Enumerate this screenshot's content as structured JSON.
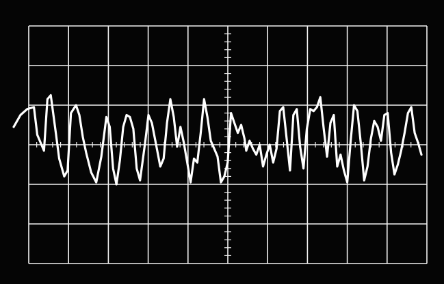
{
  "screen": {
    "background_color": "#050505",
    "grid_color": "#f2f2f2",
    "trace_color": "#ffffff",
    "grid_divisions": {
      "horizontal": 10,
      "vertical": 6
    },
    "minor_ticks_per_division": 5
  },
  "trace": {
    "description_visible": false,
    "points": [
      [
        0.0,
        0.45
      ],
      [
        0.2,
        0.75
      ],
      [
        0.4,
        0.9
      ],
      [
        0.6,
        0.95
      ],
      [
        0.7,
        0.25
      ],
      [
        0.9,
        -0.15
      ],
      [
        1.0,
        1.15
      ],
      [
        1.1,
        1.25
      ],
      [
        1.25,
        0.3
      ],
      [
        1.35,
        -0.35
      ],
      [
        1.5,
        -0.8
      ],
      [
        1.6,
        -0.65
      ],
      [
        1.7,
        0.8
      ],
      [
        1.85,
        1.0
      ],
      [
        1.95,
        0.75
      ],
      [
        2.05,
        0.2
      ],
      [
        2.15,
        -0.2
      ],
      [
        2.3,
        -0.7
      ],
      [
        2.45,
        -0.95
      ],
      [
        2.6,
        -0.3
      ],
      [
        2.75,
        0.7
      ],
      [
        2.85,
        0.45
      ],
      [
        2.95,
        -0.6
      ],
      [
        3.05,
        -1.0
      ],
      [
        3.15,
        -0.4
      ],
      [
        3.25,
        0.45
      ],
      [
        3.35,
        0.75
      ],
      [
        3.45,
        0.7
      ],
      [
        3.55,
        0.4
      ],
      [
        3.65,
        -0.6
      ],
      [
        3.75,
        -0.9
      ],
      [
        3.9,
        0.05
      ],
      [
        4.0,
        0.75
      ],
      [
        4.1,
        0.55
      ],
      [
        4.25,
        -0.1
      ],
      [
        4.35,
        -0.55
      ],
      [
        4.45,
        -0.35
      ],
      [
        4.55,
        0.55
      ],
      [
        4.65,
        1.15
      ],
      [
        4.75,
        0.7
      ],
      [
        4.85,
        -0.05
      ],
      [
        4.95,
        0.45
      ],
      [
        5.05,
        0.05
      ],
      [
        5.15,
        -0.45
      ],
      [
        5.25,
        -0.95
      ],
      [
        5.35,
        -0.35
      ],
      [
        5.45,
        -0.45
      ],
      [
        5.55,
        0.3
      ],
      [
        5.65,
        1.15
      ],
      [
        5.75,
        0.7
      ],
      [
        5.85,
        0.1
      ],
      [
        5.95,
        -0.1
      ],
      [
        6.05,
        -0.3
      ],
      [
        6.15,
        -0.95
      ],
      [
        6.25,
        -0.8
      ],
      [
        6.35,
        -0.45
      ],
      [
        6.45,
        0.8
      ],
      [
        6.55,
        0.55
      ],
      [
        6.65,
        0.3
      ],
      [
        6.75,
        0.5
      ],
      [
        6.85,
        0.15
      ],
      [
        6.9,
        -0.15
      ],
      [
        7.0,
        0.1
      ],
      [
        7.1,
        -0.1
      ],
      [
        7.2,
        -0.25
      ],
      [
        7.3,
        0.0
      ],
      [
        7.4,
        -0.55
      ],
      [
        7.5,
        -0.25
      ],
      [
        7.6,
        0.0
      ],
      [
        7.7,
        -0.45
      ],
      [
        7.8,
        -0.1
      ],
      [
        7.9,
        0.85
      ],
      [
        8.0,
        0.95
      ],
      [
        8.1,
        0.15
      ],
      [
        8.2,
        -0.65
      ],
      [
        8.3,
        0.75
      ],
      [
        8.4,
        0.9
      ],
      [
        8.5,
        -0.05
      ],
      [
        8.6,
        -0.6
      ],
      [
        8.7,
        0.4
      ],
      [
        8.8,
        0.9
      ],
      [
        8.9,
        0.85
      ],
      [
        9.0,
        0.95
      ],
      [
        9.1,
        1.2
      ],
      [
        9.2,
        0.4
      ],
      [
        9.3,
        -0.3
      ],
      [
        9.4,
        0.55
      ],
      [
        9.5,
        0.75
      ],
      [
        9.6,
        -0.55
      ],
      [
        9.7,
        -0.25
      ],
      [
        9.8,
        -0.65
      ],
      [
        9.9,
        -0.95
      ],
      [
        10.0,
        0.1
      ],
      [
        10.1,
        1.0
      ],
      [
        10.2,
        0.85
      ],
      [
        10.3,
        0.05
      ],
      [
        10.4,
        -0.9
      ],
      [
        10.5,
        -0.55
      ],
      [
        10.6,
        0.15
      ],
      [
        10.7,
        0.6
      ],
      [
        10.8,
        0.45
      ],
      [
        10.9,
        0.1
      ],
      [
        11.0,
        0.75
      ],
      [
        11.1,
        0.8
      ],
      [
        11.2,
        -0.2
      ],
      [
        11.3,
        -0.75
      ],
      [
        11.4,
        -0.5
      ],
      [
        11.5,
        -0.15
      ],
      [
        11.6,
        0.3
      ],
      [
        11.7,
        0.8
      ],
      [
        11.8,
        0.95
      ],
      [
        11.9,
        0.3
      ],
      [
        12.0,
        0.05
      ],
      [
        12.1,
        -0.25
      ]
    ]
  }
}
